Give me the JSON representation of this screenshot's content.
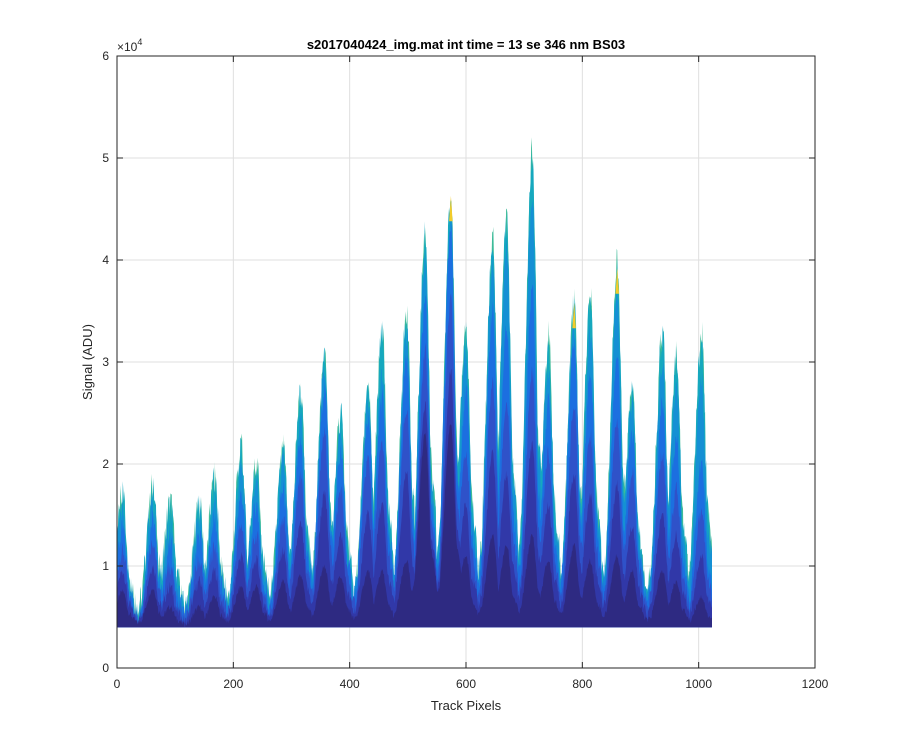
{
  "chart_data": {
    "type": "area",
    "title": "s2017040424_img.mat int time = 13 se  346 nm BS03",
    "xlabel": "Track Pixels",
    "ylabel": "Signal (ADU)",
    "y_exponent_label": "×10",
    "y_exponent_power": "4",
    "xlim": [
      0,
      1200
    ],
    "ylim": [
      0,
      6
    ],
    "y_scale_multiplier": 10000,
    "xticks": [
      0,
      200,
      400,
      600,
      800,
      1000,
      1200
    ],
    "yticks": [
      0,
      1,
      2,
      3,
      4,
      5,
      6
    ],
    "grid": true,
    "legend": "none",
    "baseline": 0.4,
    "x_extent": [
      0,
      1023
    ],
    "peak_positions": [
      10,
      62,
      92,
      142,
      168,
      214,
      240,
      286,
      316,
      357,
      385,
      432,
      456,
      498,
      530,
      574,
      600,
      646,
      670,
      714,
      742,
      786,
      814,
      860,
      886,
      938,
      962,
      1005
    ],
    "series": [
      {
        "values": [
          0.75,
          0.78,
          0.6,
          0.6,
          0.7,
          0.8,
          0.8,
          0.85,
          0.9,
          1.0,
          0.9,
          0.95,
          0.95,
          1.05,
          2.3,
          2.4,
          1.1,
          1.3,
          1.2,
          1.3,
          1.05,
          1.2,
          1.05,
          1.1,
          0.95,
          0.95,
          0.85,
          0.7
        ],
        "color": "#2e2a82"
      },
      {
        "values": [
          0.95,
          1.0,
          0.8,
          0.85,
          0.95,
          1.1,
          1.05,
          1.15,
          1.4,
          1.7,
          1.3,
          1.5,
          1.6,
          1.9,
          2.6,
          2.9,
          1.6,
          2.1,
          1.9,
          2.2,
          1.6,
          1.9,
          1.7,
          1.8,
          1.4,
          1.5,
          1.3,
          1.1
        ],
        "color": "#3138a8"
      },
      {
        "values": [
          1.15,
          1.25,
          1.0,
          1.05,
          1.2,
          1.4,
          1.3,
          1.45,
          1.85,
          2.3,
          1.75,
          2.05,
          2.2,
          2.55,
          3.1,
          3.6,
          2.15,
          2.8,
          2.6,
          2.9,
          2.1,
          2.55,
          2.3,
          2.45,
          1.9,
          2.1,
          1.75,
          1.55
        ],
        "color": "#2f52c9"
      },
      {
        "values": [
          1.35,
          1.45,
          1.2,
          1.3,
          1.45,
          1.7,
          1.6,
          1.75,
          2.2,
          2.75,
          2.1,
          2.45,
          2.65,
          3.05,
          3.6,
          4.3,
          2.7,
          3.5,
          3.3,
          3.7,
          2.6,
          3.2,
          2.9,
          3.1,
          2.3,
          2.6,
          2.25,
          2.0
        ],
        "color": "#1c6fe0"
      },
      {
        "values": [
          1.55,
          1.6,
          1.4,
          1.45,
          1.65,
          1.95,
          1.85,
          2.0,
          2.45,
          2.95,
          2.3,
          2.6,
          2.85,
          3.3,
          4.0,
          4.45,
          3.05,
          3.95,
          4.1,
          4.6,
          2.95,
          3.4,
          3.3,
          3.7,
          2.55,
          3.0,
          2.8,
          2.8
        ],
        "color": "#1590d4"
      },
      {
        "values": [
          1.72,
          1.74,
          1.6,
          1.58,
          1.82,
          2.1,
          2.0,
          2.1,
          2.68,
          3.04,
          2.45,
          2.68,
          3.26,
          3.45,
          4.24,
          4.6,
          3.3,
          4.16,
          4.37,
          5.02,
          3.2,
          3.58,
          3.65,
          3.92,
          2.7,
          3.28,
          3.08,
          3.22
        ],
        "color": "#16a8be"
      },
      {
        "values": [
          1.72,
          1.74,
          1.6,
          1.58,
          1.82,
          2.1,
          2.0,
          2.1,
          2.68,
          3.04,
          2.45,
          2.68,
          3.26,
          3.45,
          4.24,
          4.62,
          3.3,
          4.16,
          4.37,
          5.02,
          3.2,
          3.6,
          3.65,
          3.92,
          2.7,
          3.28,
          3.08,
          3.22
        ],
        "color": "#3dbb98"
      }
    ],
    "accent_peaks": {
      "color": "#f3cc2a",
      "x": [
        574,
        786,
        860
      ],
      "values": [
        4.63,
        3.58,
        3.92
      ]
    }
  }
}
